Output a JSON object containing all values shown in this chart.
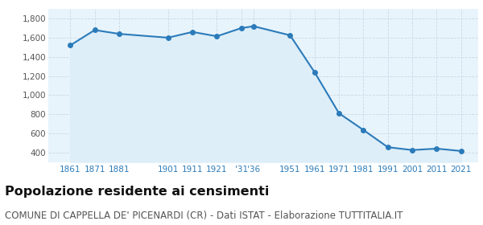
{
  "years": [
    1861,
    1871,
    1881,
    1901,
    1911,
    1921,
    1931,
    1936,
    1951,
    1961,
    1971,
    1981,
    1991,
    2001,
    2011,
    2021
  ],
  "population": [
    1520,
    1680,
    1640,
    1600,
    1660,
    1615,
    1700,
    1720,
    1625,
    1240,
    810,
    635,
    455,
    425,
    440,
    415
  ],
  "x_tick_labels": [
    "1861",
    "1871",
    "1881",
    "1901",
    "1911",
    "1921",
    "'31'36",
    "1951",
    "1961",
    "1971",
    "1981",
    "1991",
    "2001",
    "2011",
    "2021"
  ],
  "x_ticks": [
    1861,
    1871,
    1881,
    1901,
    1911,
    1921,
    1931,
    1951,
    1961,
    1971,
    1981,
    1991,
    2001,
    2011,
    2021
  ],
  "line_color": "#2b7bba",
  "fill_color": "#ddeef8",
  "marker_color": "#2b7bba",
  "grid_color": "#c8d8e8",
  "bg_color": "#ffffff",
  "ax_bg_color": "#e8f4fb",
  "ylim": [
    300,
    1900
  ],
  "yticks": [
    400,
    600,
    800,
    1000,
    1200,
    1400,
    1600,
    1800
  ],
  "xlim_left": 1852,
  "xlim_right": 2028,
  "title": "Popolazione residente ai censimenti",
  "subtitle": "COMUNE DI CAPPELLA DE' PICENARDI (CR) - Dati ISTAT - Elaborazione TUTTITALIA.IT",
  "title_fontsize": 11.5,
  "subtitle_fontsize": 8.5
}
